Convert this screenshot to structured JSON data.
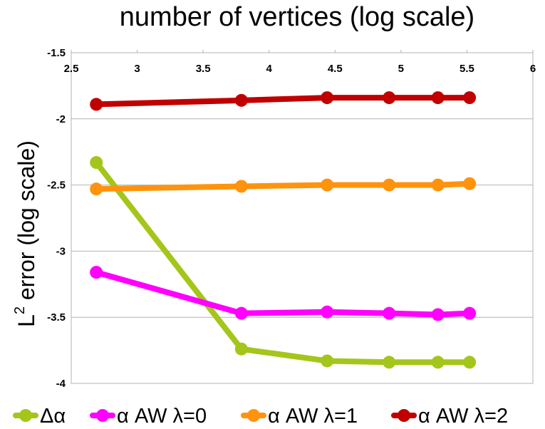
{
  "chart_data": {
    "type": "line",
    "title": "number of vertices (log scale)",
    "ylabel_main": "L",
    "ylabel_sup": "2",
    "ylabel_rest": " error (log scale)",
    "x_ticks": [
      "2.5",
      "3",
      "3.5",
      "4",
      "4.5",
      "5",
      "5.5",
      "6"
    ],
    "y_ticks": [
      "-1.5",
      "-2",
      "-2.5",
      "-3",
      "-3.5",
      "-4"
    ],
    "xlim": [
      2.5,
      6
    ],
    "ylim": [
      -4,
      -1.5
    ],
    "x_axis_position": "top",
    "grid": true,
    "legend_position": "bottom",
    "x": [
      2.69,
      3.79,
      4.44,
      4.91,
      5.28,
      5.52
    ],
    "series": [
      {
        "name": "Δα",
        "color": "#a4c61a",
        "values": [
          -2.33,
          -3.74,
          -3.83,
          -3.84,
          -3.84,
          -3.84
        ]
      },
      {
        "name": "α AW λ=0",
        "color": "#ff00ff",
        "values": [
          -3.16,
          -3.47,
          -3.46,
          -3.47,
          -3.48,
          -3.47
        ]
      },
      {
        "name": "α AW λ=1",
        "color": "#ff930e",
        "values": [
          -2.53,
          -2.51,
          -2.5,
          -2.5,
          -2.5,
          -2.49
        ]
      },
      {
        "name": "α AW λ=2",
        "color": "#c00000",
        "values": [
          -1.89,
          -1.86,
          -1.84,
          -1.84,
          -1.84,
          -1.84
        ]
      }
    ]
  }
}
